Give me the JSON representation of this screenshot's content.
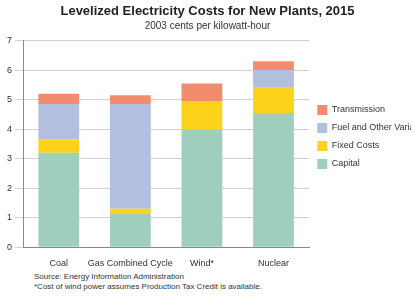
{
  "chart_data": {
    "type": "bar",
    "title": "Levelized Electricity Costs for New Plants, 2015",
    "subtitle": "2003 cents per kilowatt-hour",
    "annotations": [
      "Source: Energy Information Administration",
      "*Cost of wind power assumes Production Tax Credit is available."
    ],
    "categories": [
      "Coal",
      "Gas Combined Cycle",
      "Wind*",
      "Nuclear"
    ],
    "series": [
      {
        "name": "Capital",
        "color": "#9fcfbc",
        "values": [
          3.2,
          1.15,
          4.0,
          4.55
        ]
      },
      {
        "name": "Fixed Costs",
        "color": "#fdd21a",
        "values": [
          0.45,
          0.15,
          0.95,
          0.85
        ]
      },
      {
        "name": "Fuel and Other Variable Costs",
        "color": "#b3bfdf",
        "values": [
          1.2,
          3.55,
          0,
          0.6
        ]
      },
      {
        "name": "Transmission",
        "color": "#f28c6e",
        "values": [
          0.35,
          0.3,
          0.6,
          0.3
        ]
      }
    ],
    "stacked": true,
    "ylim": [
      0,
      7
    ],
    "yticks": [
      0,
      1,
      2,
      3,
      4,
      5,
      6,
      7
    ],
    "grid": true,
    "legend": "right"
  }
}
